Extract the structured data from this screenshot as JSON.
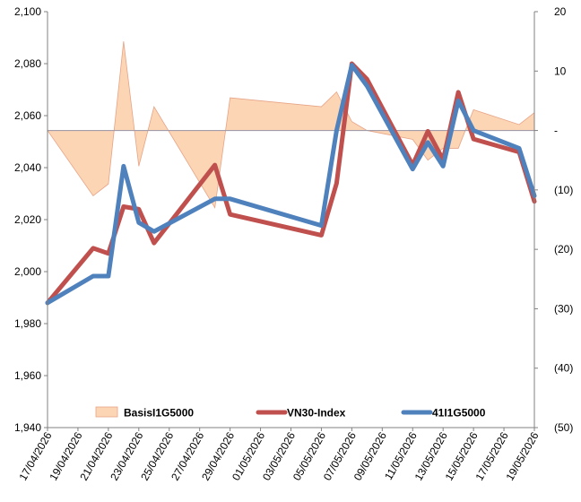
{
  "chart_data": {
    "type": "line",
    "x": [
      "17/04/2026",
      "20/04/2026",
      "21/04/2026",
      "22/04/2026",
      "23/04/2026",
      "24/04/2026",
      "28/04/2026",
      "29/04/2026",
      "05/05/2026",
      "06/05/2026",
      "07/05/2026",
      "08/05/2026",
      "11/05/2026",
      "12/05/2026",
      "13/05/2026",
      "14/05/2026",
      "15/05/2026",
      "18/05/2026",
      "19/05/2026"
    ],
    "x_tick_labels": [
      "17/04/2026",
      "19/04/2026",
      "21/04/2026",
      "23/04/2026",
      "25/04/2026",
      "27/04/2026",
      "29/04/2026",
      "01/05/2026",
      "03/05/2026",
      "05/05/2026",
      "07/05/2026",
      "09/05/2026",
      "11/05/2026",
      "13/05/2026",
      "15/05/2026",
      "17/05/2026",
      "19/05/2026"
    ],
    "y_left": {
      "min": 1940,
      "max": 2100,
      "ticks": [
        "1,940",
        "1,960",
        "1,980",
        "2,000",
        "2,020",
        "2,040",
        "2,060",
        "2,080",
        "2,100"
      ]
    },
    "y_right": {
      "min": -50,
      "max": 20,
      "ticks": [
        "(50)",
        "(40)",
        "(30)",
        "(20)",
        "(10)",
        "-",
        "10",
        "20"
      ]
    },
    "series": [
      {
        "name": "BasisI1G5000",
        "kind": "area",
        "axis": "right",
        "color": "#FCD5B5",
        "edge_color": "#E6A386",
        "values": [
          0,
          -11,
          -9,
          15,
          -6,
          4,
          -13,
          5.5,
          4,
          6.5,
          1.5,
          0,
          -1.5,
          -5,
          -3,
          -3,
          3.5,
          1,
          3
        ]
      },
      {
        "name": "VN30-Index",
        "kind": "line",
        "axis": "left",
        "color": "#C0504D",
        "values": [
          1988,
          2009,
          2007,
          2025,
          2024,
          2011,
          2041,
          2022,
          2014,
          2034,
          2080,
          2074,
          2041,
          2054,
          2043,
          2069,
          2051,
          2046,
          2027
        ]
      },
      {
        "name": "41I1G5000",
        "kind": "line",
        "axis": "right",
        "color": "#4F81BD",
        "values": [
          -29,
          -24.5,
          -24.5,
          -6,
          -15.5,
          -17,
          -11.5,
          -11.5,
          -16,
          0,
          11,
          7.5,
          -6.5,
          -2,
          -6,
          5,
          0,
          -3,
          -11
        ]
      }
    ],
    "legend": {
      "position": "bottom-inside"
    },
    "grid": false
  }
}
